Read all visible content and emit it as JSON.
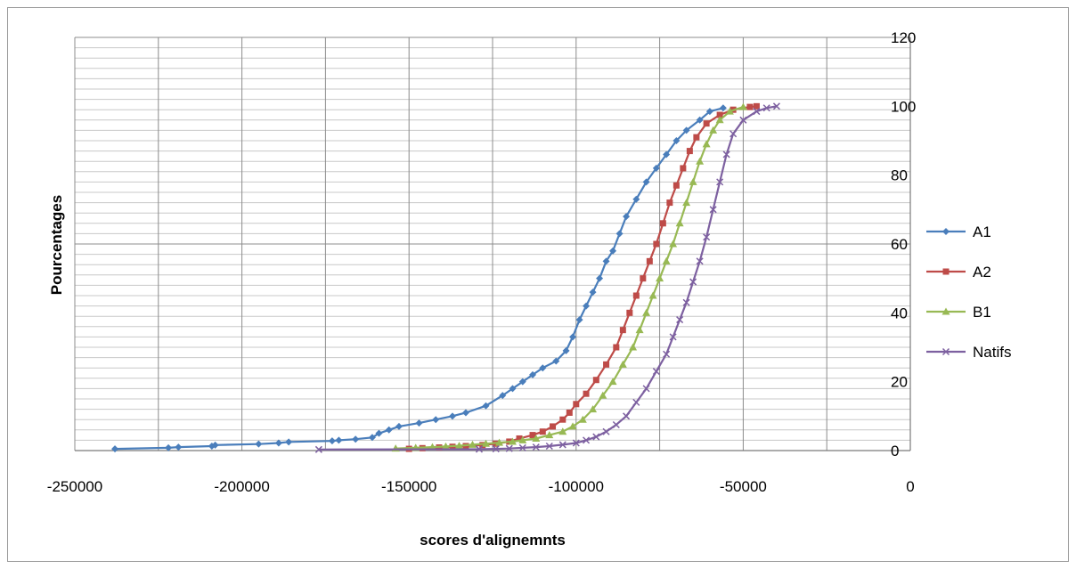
{
  "chart_data": {
    "type": "scatter",
    "title": "",
    "xlabel": "scores d'alignemnts",
    "ylabel": "Pourcentages",
    "xlim": [
      -250000,
      0
    ],
    "ylim": [
      0,
      120
    ],
    "x_ticks": [
      -250000,
      -200000,
      -150000,
      -100000,
      -50000,
      0
    ],
    "x_tick_labels": [
      "-250000",
      "-200000",
      "-150000",
      "-100000",
      "-50000",
      "0"
    ],
    "y_ticks": [
      0,
      20,
      40,
      60,
      80,
      100,
      120
    ],
    "y_tick_labels": [
      "0",
      "20",
      "40",
      "60",
      "80",
      "100",
      "120"
    ],
    "y_axis_side": "right",
    "grid": true,
    "legend_position": "right",
    "series": [
      {
        "name": "A1",
        "color": "#4a7ebb",
        "marker": "diamond",
        "points": [
          [
            -238000,
            0.5
          ],
          [
            -222000,
            0.8
          ],
          [
            -219000,
            1.0
          ],
          [
            -209000,
            1.3
          ],
          [
            -208000,
            1.6
          ],
          [
            -195000,
            1.9
          ],
          [
            -189000,
            2.2
          ],
          [
            -186000,
            2.5
          ],
          [
            -173000,
            2.8
          ],
          [
            -171000,
            3.0
          ],
          [
            -166000,
            3.3
          ],
          [
            -161000,
            3.8
          ],
          [
            -159000,
            5.0
          ],
          [
            -156000,
            6.0
          ],
          [
            -153000,
            7.0
          ],
          [
            -147000,
            8.0
          ],
          [
            -142000,
            9.0
          ],
          [
            -137000,
            10.0
          ],
          [
            -133000,
            11.0
          ],
          [
            -127000,
            13.0
          ],
          [
            -122000,
            16.0
          ],
          [
            -119000,
            18.0
          ],
          [
            -116000,
            20.0
          ],
          [
            -113000,
            22.0
          ],
          [
            -110000,
            24.0
          ],
          [
            -106000,
            26.0
          ],
          [
            -103000,
            29.0
          ],
          [
            -101000,
            33.0
          ],
          [
            -99000,
            38.0
          ],
          [
            -97000,
            42.0
          ],
          [
            -95000,
            46.0
          ],
          [
            -93000,
            50.0
          ],
          [
            -91000,
            55.0
          ],
          [
            -89000,
            58.0
          ],
          [
            -87000,
            63.0
          ],
          [
            -85000,
            68.0
          ],
          [
            -82000,
            73.0
          ],
          [
            -79000,
            78.0
          ],
          [
            -76000,
            82.0
          ],
          [
            -73000,
            86.0
          ],
          [
            -70000,
            90.0
          ],
          [
            -67000,
            93.0
          ],
          [
            -63000,
            96.0
          ],
          [
            -60000,
            98.5
          ],
          [
            -56000,
            99.5
          ]
        ]
      },
      {
        "name": "A2",
        "color": "#be4b48",
        "marker": "square",
        "points": [
          [
            -150000,
            0.5
          ],
          [
            -146000,
            0.7
          ],
          [
            -141000,
            0.9
          ],
          [
            -137000,
            1.1
          ],
          [
            -133000,
            1.3
          ],
          [
            -128000,
            1.6
          ],
          [
            -124000,
            2.0
          ],
          [
            -120000,
            2.6
          ],
          [
            -117000,
            3.5
          ],
          [
            -113000,
            4.5
          ],
          [
            -110000,
            5.5
          ],
          [
            -107000,
            7.0
          ],
          [
            -104000,
            9.0
          ],
          [
            -102000,
            11.0
          ],
          [
            -100000,
            13.5
          ],
          [
            -97000,
            16.5
          ],
          [
            -94000,
            20.5
          ],
          [
            -91000,
            25.0
          ],
          [
            -88000,
            30.0
          ],
          [
            -86000,
            35.0
          ],
          [
            -84000,
            40.0
          ],
          [
            -82000,
            45.0
          ],
          [
            -80000,
            50.0
          ],
          [
            -78000,
            55.0
          ],
          [
            -76000,
            60.0
          ],
          [
            -74000,
            66.0
          ],
          [
            -72000,
            72.0
          ],
          [
            -70000,
            77.0
          ],
          [
            -68000,
            82.0
          ],
          [
            -66000,
            87.0
          ],
          [
            -64000,
            91.0
          ],
          [
            -61000,
            95.0
          ],
          [
            -57000,
            97.5
          ],
          [
            -53000,
            99.0
          ],
          [
            -48000,
            99.8
          ],
          [
            -46000,
            100.0
          ]
        ]
      },
      {
        "name": "B1",
        "color": "#98b954",
        "marker": "triangle",
        "points": [
          [
            -154000,
            0.6
          ],
          [
            -148000,
            0.8
          ],
          [
            -143000,
            1.0
          ],
          [
            -139000,
            1.2
          ],
          [
            -135000,
            1.4
          ],
          [
            -131000,
            1.7
          ],
          [
            -127000,
            2.0
          ],
          [
            -123000,
            2.3
          ],
          [
            -119000,
            2.6
          ],
          [
            -116000,
            3.0
          ],
          [
            -112000,
            3.5
          ],
          [
            -108000,
            4.5
          ],
          [
            -104000,
            5.5
          ],
          [
            -101000,
            7.0
          ],
          [
            -98000,
            9.0
          ],
          [
            -95000,
            12.0
          ],
          [
            -92000,
            16.0
          ],
          [
            -89000,
            20.0
          ],
          [
            -86000,
            25.0
          ],
          [
            -83000,
            30.0
          ],
          [
            -81000,
            35.0
          ],
          [
            -79000,
            40.0
          ],
          [
            -77000,
            45.0
          ],
          [
            -75000,
            50.0
          ],
          [
            -73000,
            55.0
          ],
          [
            -71000,
            60.0
          ],
          [
            -69000,
            66.0
          ],
          [
            -67000,
            72.0
          ],
          [
            -65000,
            78.0
          ],
          [
            -63000,
            84.0
          ],
          [
            -61000,
            89.0
          ],
          [
            -59000,
            93.0
          ],
          [
            -57000,
            96.0
          ],
          [
            -54000,
            98.5
          ],
          [
            -50000,
            99.8
          ]
        ]
      },
      {
        "name": "Natifs",
        "color": "#7d60a0",
        "marker": "x",
        "points": [
          [
            -177000,
            0.3
          ],
          [
            -129000,
            0.4
          ],
          [
            -124000,
            0.5
          ],
          [
            -120000,
            0.6
          ],
          [
            -116000,
            0.8
          ],
          [
            -112000,
            1.0
          ],
          [
            -108000,
            1.3
          ],
          [
            -104000,
            1.7
          ],
          [
            -100000,
            2.2
          ],
          [
            -97000,
            3.0
          ],
          [
            -94000,
            4.0
          ],
          [
            -91000,
            5.5
          ],
          [
            -88000,
            7.5
          ],
          [
            -85000,
            10.0
          ],
          [
            -82000,
            14.0
          ],
          [
            -79000,
            18.0
          ],
          [
            -76000,
            23.0
          ],
          [
            -73000,
            28.0
          ],
          [
            -71000,
            33.0
          ],
          [
            -69000,
            38.0
          ],
          [
            -67000,
            43.0
          ],
          [
            -65000,
            49.0
          ],
          [
            -63000,
            55.0
          ],
          [
            -61000,
            62.0
          ],
          [
            -59000,
            70.0
          ],
          [
            -57000,
            78.0
          ],
          [
            -55000,
            86.0
          ],
          [
            -53000,
            92.0
          ],
          [
            -50000,
            96.0
          ],
          [
            -46000,
            98.5
          ],
          [
            -43000,
            99.5
          ],
          [
            -40000,
            100.0
          ]
        ]
      }
    ]
  }
}
